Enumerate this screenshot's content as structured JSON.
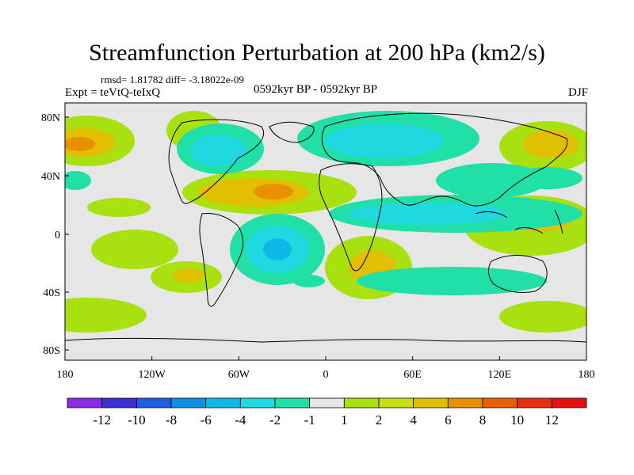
{
  "title": "Streamfunction Perturbation at 200 hPa (km2/s)",
  "stats_line": "rmsd= 1.81782 diff= -3.18022e-09",
  "experiment_line": "Expt = teVtQ-teIxQ",
  "period_line": "0592kyr BP - 0592kyr BP",
  "season": "DJF",
  "axes": {
    "x_ticks": [
      "180",
      "120W",
      "60W",
      "0",
      "60E",
      "120E",
      "180"
    ],
    "y_ticks": [
      "80N",
      "40N",
      "0",
      "40S",
      "80S"
    ]
  },
  "colorbar": {
    "labels": [
      "-12",
      "-10",
      "-8",
      "-6",
      "-4",
      "-2",
      "-1",
      "1",
      "2",
      "4",
      "6",
      "8",
      "10",
      "12"
    ],
    "colors": [
      "#8a2be2",
      "#3a2fd0",
      "#2060e0",
      "#1090e0",
      "#10b8e8",
      "#20d8e0",
      "#20e0a8",
      "#e6e6e6",
      "#a8e010",
      "#c8e010",
      "#e0c000",
      "#e89000",
      "#e86000",
      "#e83010",
      "#e81010"
    ]
  },
  "palette": {
    "neutral": "#e6e6e6",
    "light_pos": "#a8e010",
    "mid_pos": "#c8e010",
    "pos_4": "#e0c000",
    "pos_6": "#e89000",
    "light_neg": "#20e0a8",
    "neg_2": "#20d8e0",
    "neg_4": "#10b8e8",
    "coastline": "#000000"
  }
}
